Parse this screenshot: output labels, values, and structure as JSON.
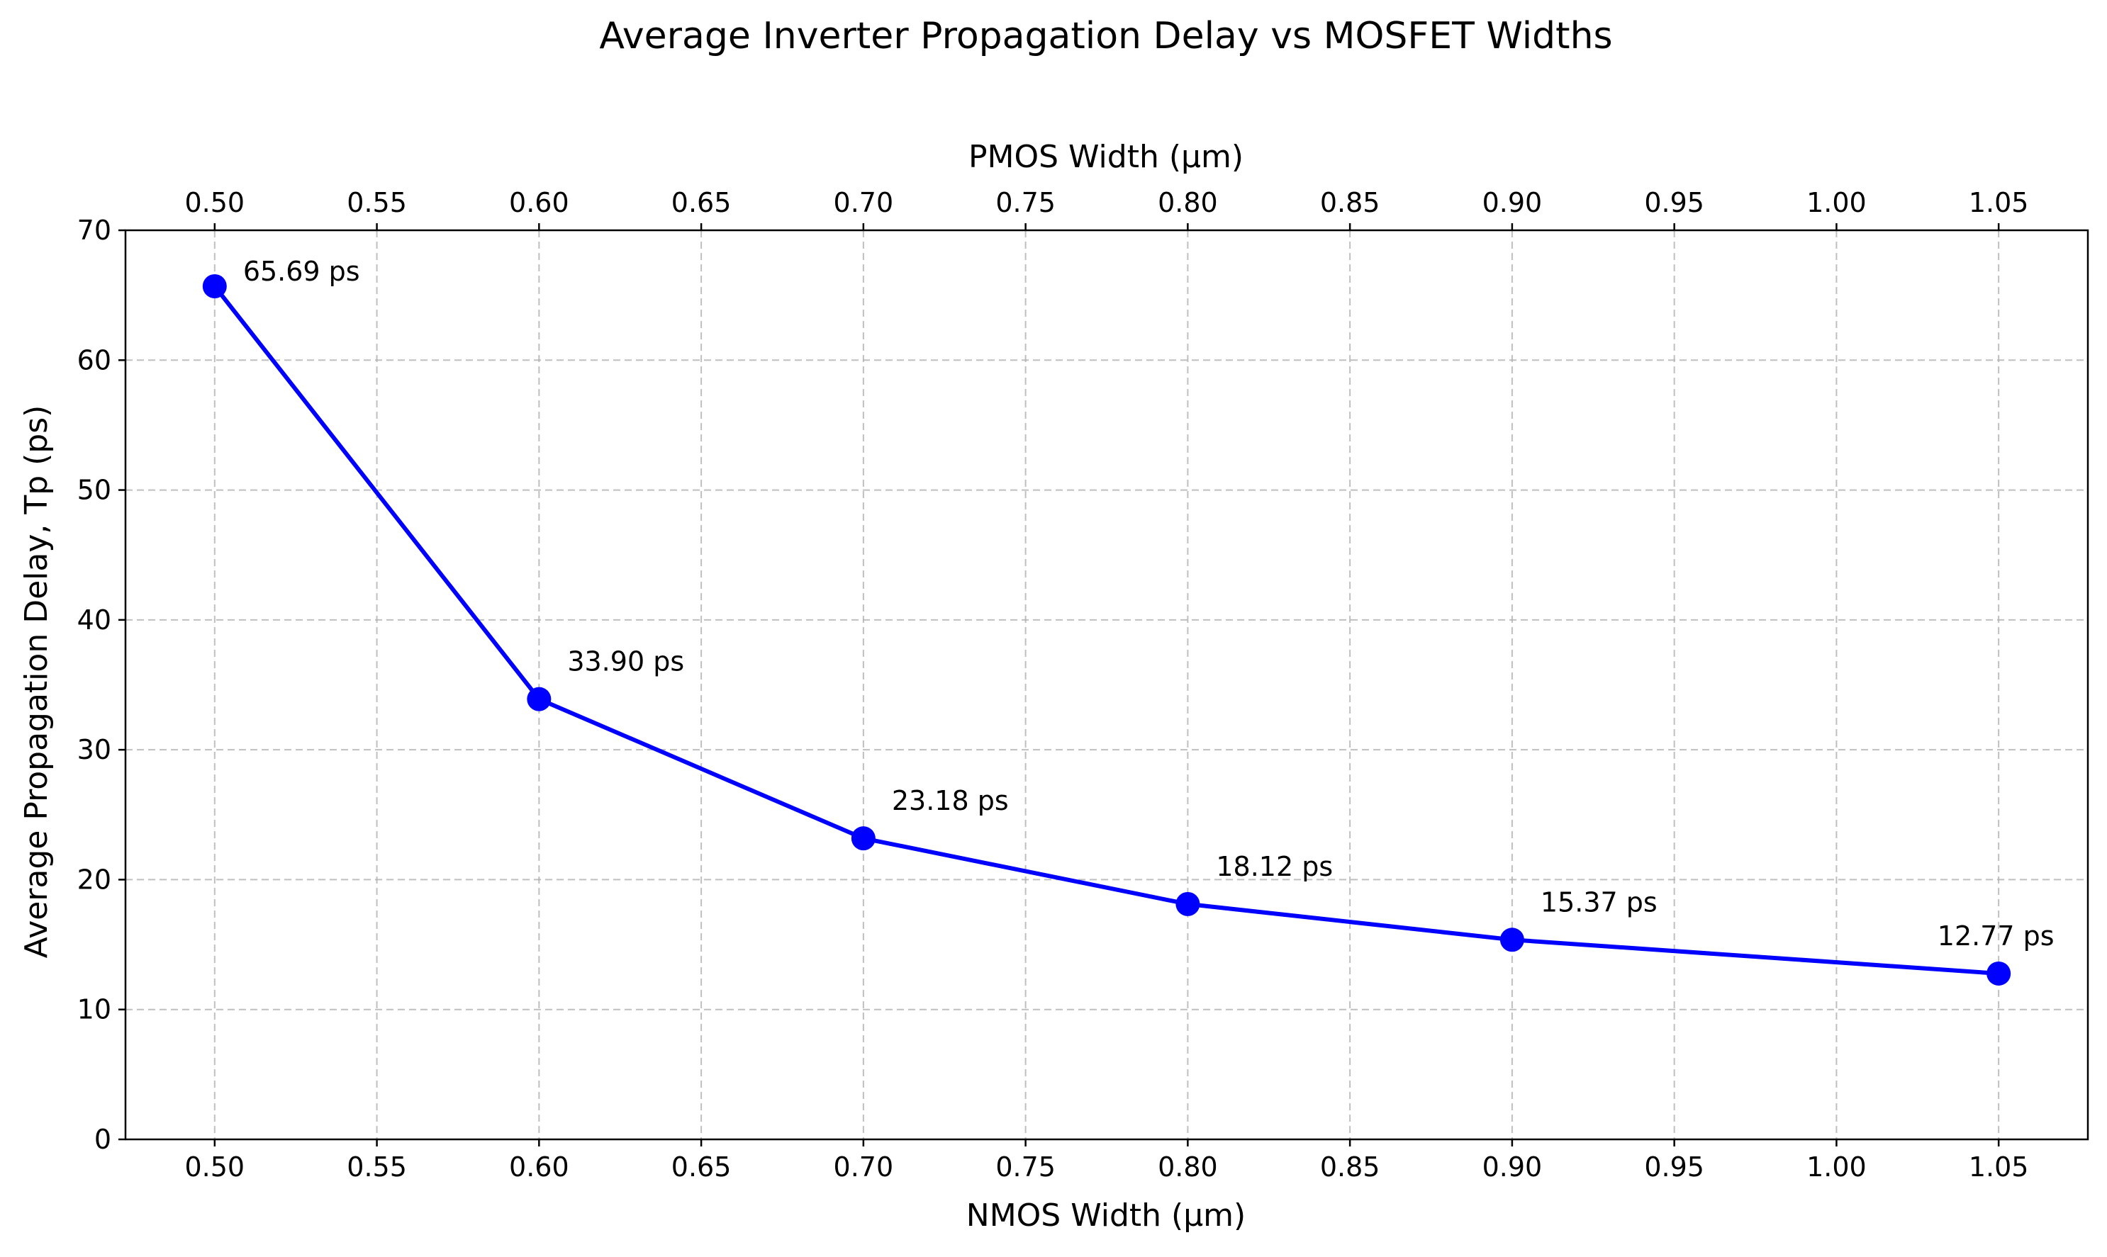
{
  "chart_data": {
    "type": "line",
    "title": "Average Inverter Propagation Delay vs MOSFET Widths",
    "xlabel": "NMOS Width (µm)",
    "x2label": "PMOS Width (µm)",
    "ylabel": "Average Propagation Delay, Tp (ps)",
    "xlim": [
      0.4725,
      1.0775
    ],
    "ylim": [
      0,
      70
    ],
    "xticks": [
      0.5,
      0.55,
      0.6,
      0.65,
      0.7,
      0.75,
      0.8,
      0.85,
      0.9,
      0.95,
      1.0,
      1.05
    ],
    "xtick_labels": [
      "0.50",
      "0.55",
      "0.60",
      "0.65",
      "0.70",
      "0.75",
      "0.80",
      "0.85",
      "0.90",
      "0.95",
      "1.00",
      "1.05"
    ],
    "yticks": [
      0,
      10,
      20,
      30,
      40,
      50,
      60,
      70
    ],
    "ytick_labels": [
      "0",
      "10",
      "20",
      "30",
      "40",
      "50",
      "60",
      "70"
    ],
    "grid": true,
    "series": [
      {
        "color": "#0000ff",
        "marker": "circle",
        "x": [
          0.5,
          0.6,
          0.7,
          0.8,
          0.9,
          1.05
        ],
        "y": [
          65.69,
          33.9,
          23.18,
          18.12,
          15.37,
          12.77
        ],
        "labels": [
          "65.69 ps",
          "33.90 ps",
          "23.18 ps",
          "18.12 ps",
          "15.37 ps",
          "12.77 ps"
        ]
      }
    ]
  }
}
